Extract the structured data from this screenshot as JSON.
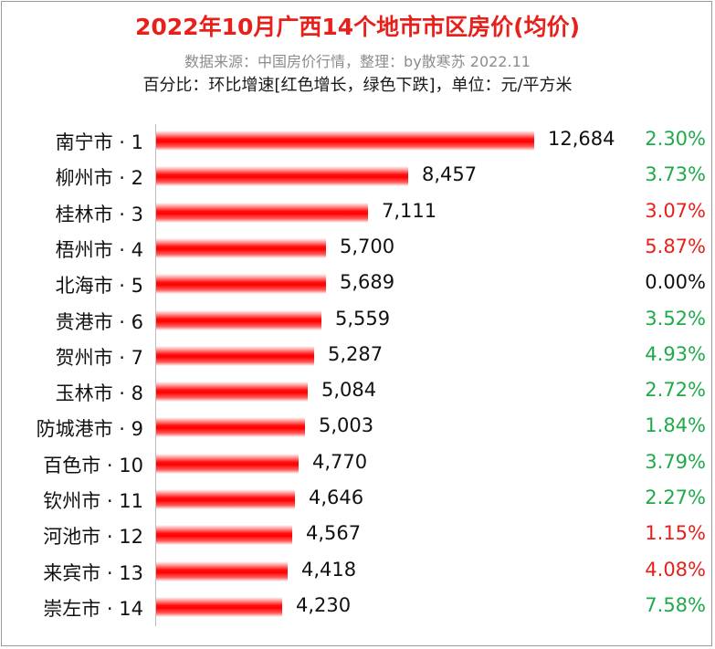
{
  "title": "2022年10月广西14个地市市区房价(均价)",
  "source": "数据来源：中国房价行情，整理：by散寒苏  2022.11",
  "note": "百分比：环比增速[红色增长，绿色下跌]，单位：元/平方米",
  "colors": {
    "title": "#e8201c",
    "bar": "#ff0000",
    "up": "#e8201c",
    "down": "#1faa4a",
    "flat": "#111111"
  },
  "chart_data": {
    "type": "bar",
    "orientation": "horizontal",
    "title": "2022年10月广西14个地市市区房价(均价)",
    "categories": [
      "南宁市 · 1",
      "柳州市 · 2",
      "桂林市 · 3",
      "梧州市 · 4",
      "北海市 · 5",
      "贵港市 · 6",
      "贺州市 · 7",
      "玉林市 · 8",
      "防城港市 · 9",
      "百色市 · 10",
      "钦州市 · 11",
      "河池市 · 12",
      "来宾市 · 13",
      "崇左市 · 14"
    ],
    "values": [
      12684,
      8457,
      7111,
      5700,
      5689,
      5559,
      5287,
      5084,
      5003,
      4770,
      4646,
      4567,
      4418,
      4230
    ],
    "value_labels": [
      "12,684",
      "8,457",
      "7,111",
      "5,700",
      "5,689",
      "5,559",
      "5,287",
      "5,084",
      "5,003",
      "4,770",
      "4,646",
      "4,567",
      "4,418",
      "4,230"
    ],
    "mom_change": [
      "2.30%",
      "3.73%",
      "3.07%",
      "5.87%",
      "0.00%",
      "3.52%",
      "4.93%",
      "2.72%",
      "1.84%",
      "3.79%",
      "2.27%",
      "1.15%",
      "4.08%",
      "7.58%"
    ],
    "mom_color": [
      "down",
      "down",
      "up",
      "up",
      "flat",
      "down",
      "down",
      "down",
      "down",
      "down",
      "down",
      "up",
      "up",
      "down"
    ],
    "xlim": [
      0,
      12684
    ],
    "grid": false
  }
}
